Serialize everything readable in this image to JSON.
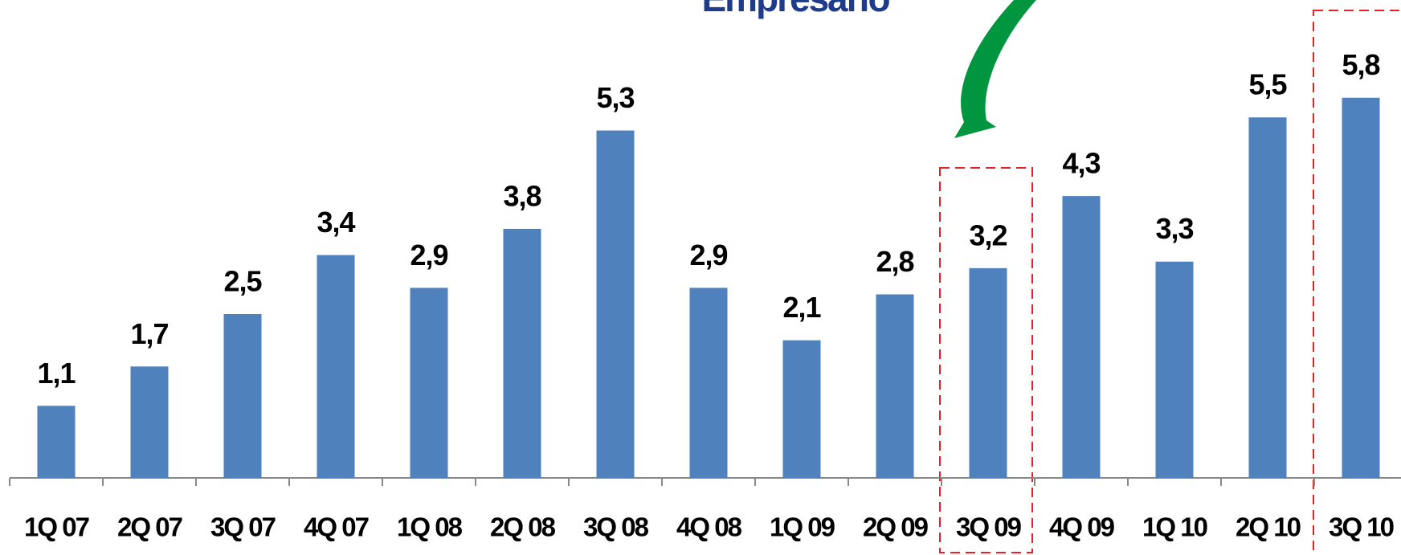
{
  "chart_data": {
    "type": "bar",
    "title": "Empresário",
    "categories": [
      "1Q 07",
      "2Q 07",
      "3Q 07",
      "4Q 07",
      "1Q 08",
      "2Q 08",
      "3Q 08",
      "4Q 08",
      "1Q 09",
      "2Q 09",
      "3Q 09",
      "4Q 09",
      "1Q 10",
      "2Q 10",
      "3Q 10"
    ],
    "values": [
      1.1,
      1.7,
      2.5,
      3.4,
      2.9,
      3.8,
      5.3,
      2.9,
      2.1,
      2.8,
      3.2,
      4.3,
      3.3,
      5.5,
      5.8
    ],
    "value_labels": [
      "1,1",
      "1,7",
      "2,5",
      "3,4",
      "2,9",
      "3,8",
      "5,3",
      "2,9",
      "2,1",
      "2,8",
      "3,2",
      "4,3",
      "3,3",
      "5,5",
      "5,8"
    ],
    "color": "#4f81bd"
  }
}
